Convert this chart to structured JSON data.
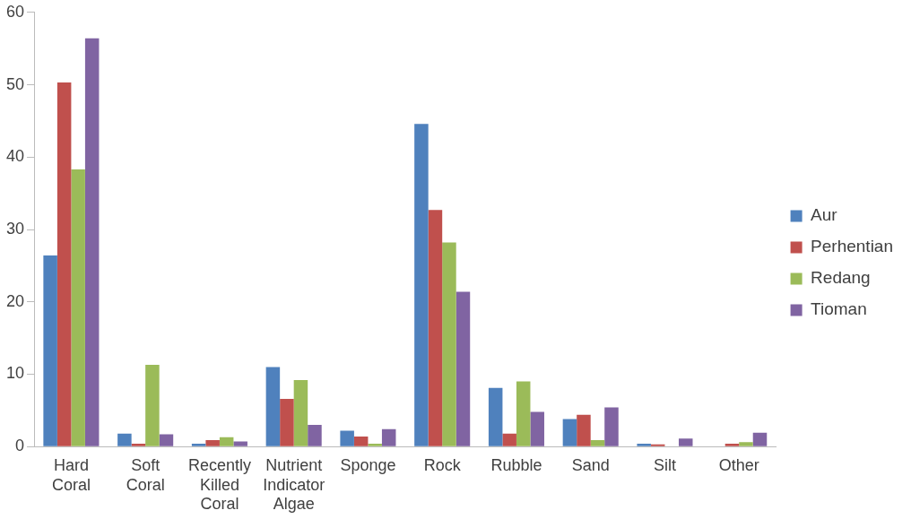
{
  "chart_data": {
    "type": "bar",
    "categories": [
      "Hard Coral",
      "Soft Coral",
      "Recently Killed Coral",
      "Nutrient Indicator Algae",
      "Sponge",
      "Rock",
      "Rubble",
      "Sand",
      "Silt",
      "Other"
    ],
    "series": [
      {
        "name": "Aur",
        "color": "#4f81bd",
        "values": [
          26.4,
          1.8,
          0.4,
          11.0,
          2.2,
          44.6,
          8.1,
          3.8,
          0.4,
          0
        ]
      },
      {
        "name": "Perhentian",
        "color": "#c0504d",
        "values": [
          50.3,
          0.4,
          0.9,
          6.6,
          1.4,
          32.7,
          1.8,
          4.4,
          0.3,
          0.4
        ]
      },
      {
        "name": "Redang",
        "color": "#9bbb59",
        "values": [
          38.3,
          11.3,
          1.3,
          9.2,
          0.4,
          28.2,
          9.0,
          0.9,
          0,
          0.6
        ]
      },
      {
        "name": "Tioman",
        "color": "#8064a2",
        "values": [
          56.4,
          1.7,
          0.7,
          3.0,
          2.4,
          21.4,
          4.8,
          5.4,
          1.1,
          1.9
        ]
      }
    ],
    "ylim": [
      0,
      60
    ],
    "yticks": [
      0,
      10,
      20,
      30,
      40,
      50,
      60
    ],
    "grid": false,
    "legend": "right"
  }
}
